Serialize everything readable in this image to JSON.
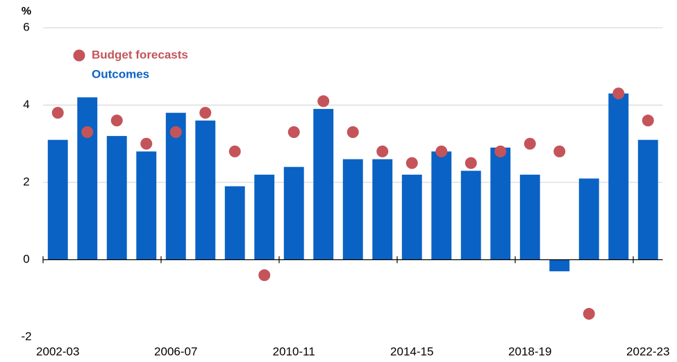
{
  "chart_data": {
    "type": "bar",
    "y_label": "%",
    "categories": [
      "2002-03",
      null,
      null,
      null,
      "2006-07",
      null,
      null,
      null,
      "2010-11",
      null,
      null,
      null,
      "2014-15",
      null,
      null,
      null,
      "2018-19",
      null,
      null,
      null,
      "2022-23"
    ],
    "series": [
      {
        "name": "Budget forecasts",
        "type": "scatter",
        "color": "#c4545a",
        "values": [
          3.8,
          3.3,
          3.6,
          3.0,
          3.3,
          3.8,
          2.8,
          -0.4,
          3.3,
          4.1,
          3.3,
          2.8,
          2.5,
          2.8,
          2.5,
          2.8,
          3.0,
          2.8,
          -1.4,
          4.3,
          3.6
        ]
      },
      {
        "name": "Outcomes",
        "type": "bar",
        "color": "#0a62c4",
        "values": [
          3.1,
          4.2,
          3.2,
          2.8,
          3.8,
          3.6,
          1.9,
          2.2,
          2.4,
          3.9,
          2.6,
          2.6,
          2.2,
          2.8,
          2.3,
          2.9,
          2.2,
          -0.3,
          2.1,
          4.3,
          3.1
        ]
      }
    ],
    "ylim": [
      -2,
      6
    ],
    "yticks": [
      -2,
      0,
      2,
      4,
      6
    ],
    "grid": true
  }
}
